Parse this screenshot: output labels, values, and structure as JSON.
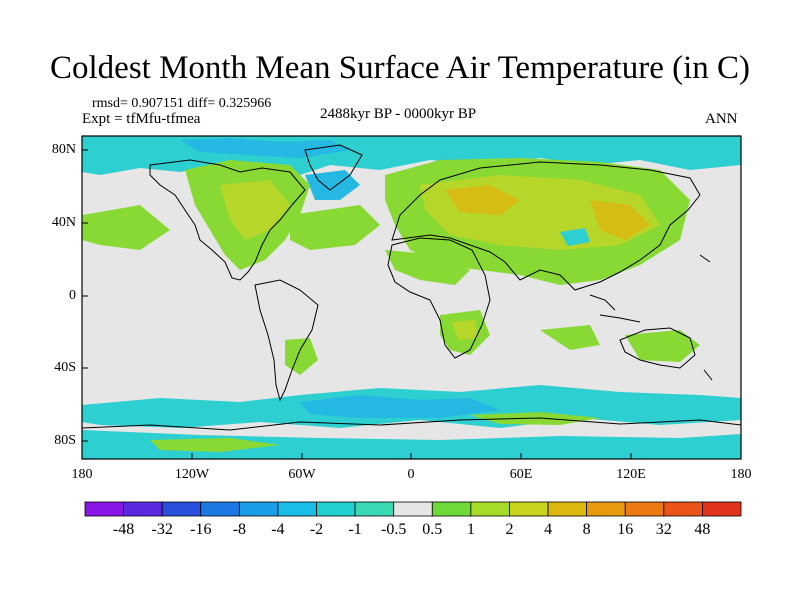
{
  "title": "Coldest Month Mean Surface Air Temperature (in C)",
  "stats": "rmsd= 0.907151 diff= 0.325966",
  "experiment": "Expt = tfMfu-tfmea",
  "period": "2488kyr BP - 0000kyr BP",
  "season": "ANN",
  "lat_ticks": [
    "80N",
    "40N",
    "0",
    "40S",
    "80S"
  ],
  "lon_ticks": [
    "180",
    "120W",
    "60W",
    "0",
    "60E",
    "120E",
    "180"
  ],
  "colorbar": {
    "labels": [
      "-48",
      "-32",
      "-16",
      "-8",
      "-4",
      "-2",
      "-1",
      "-0.5",
      "0.5",
      "1",
      "2",
      "4",
      "8",
      "16",
      "32",
      "48"
    ],
    "colors": [
      "#8a16e6",
      "#5b2ae0",
      "#2a4fdc",
      "#1c78e2",
      "#1a9ee8",
      "#19bde6",
      "#22cfcf",
      "#3ad9b4",
      "#e6e6e6",
      "#6fd93a",
      "#a6dc28",
      "#c9d41e",
      "#ddb80f",
      "#e89a10",
      "#ec7a12",
      "#ea5418",
      "#e2331c"
    ]
  },
  "colors": {
    "no_change": "#e6e6e6",
    "warm_light": "#88d934",
    "warm_mid": "#b6d62a",
    "warm_high": "#d6bd14",
    "cool_light": "#2ecfd0",
    "cool_mid": "#25b8e2"
  }
}
